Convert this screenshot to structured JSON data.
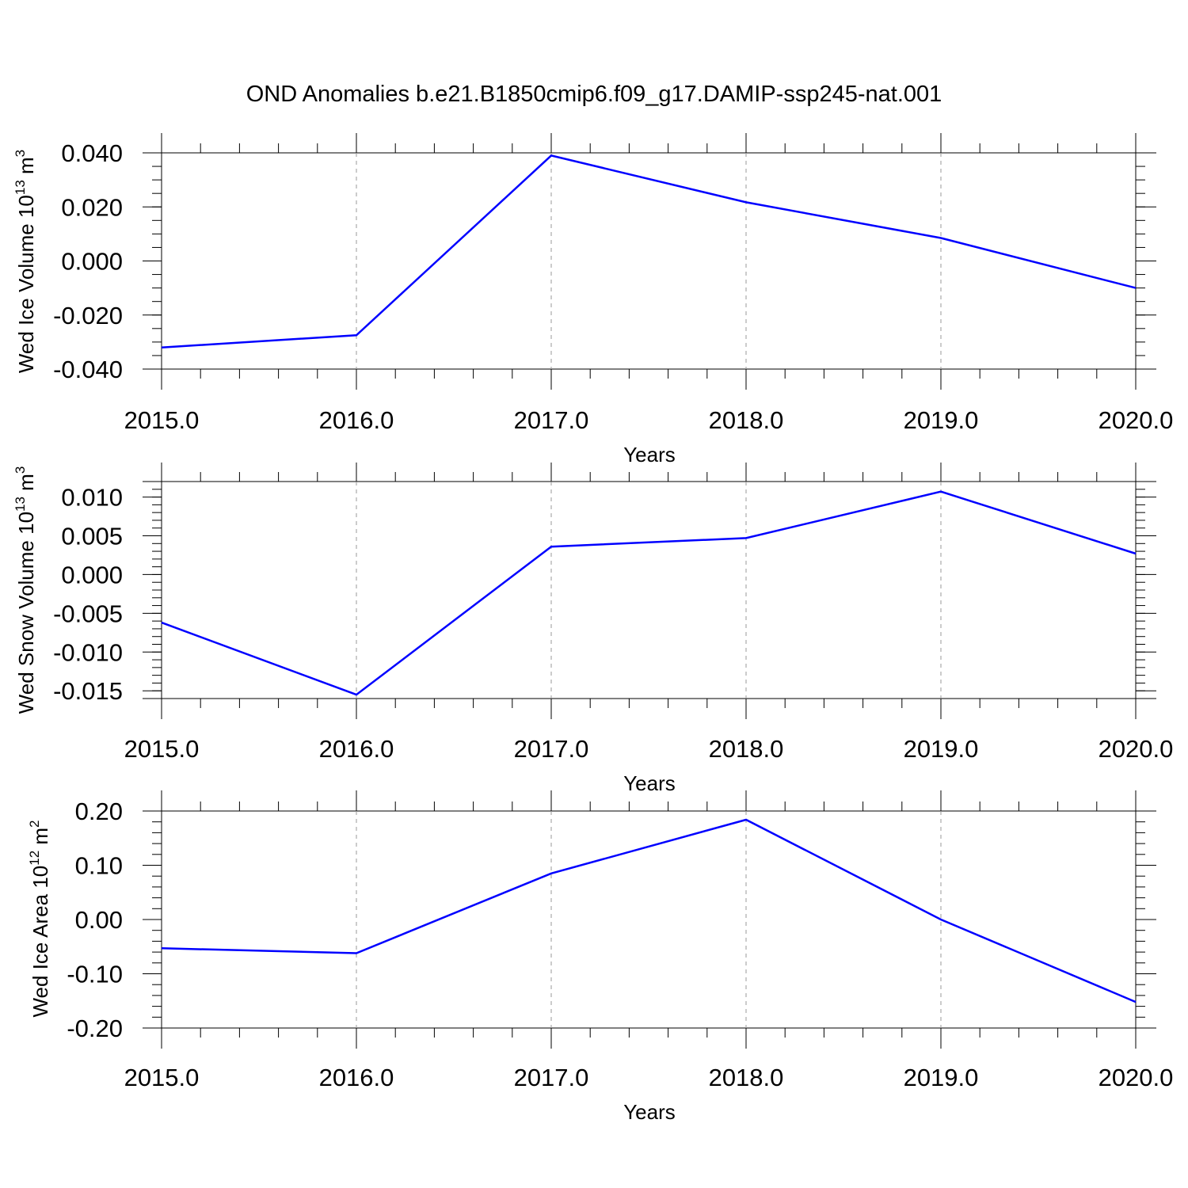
{
  "title": "OND Anomalies b.e21.B1850cmip6.f09_g17.DAMIP-ssp245-nat.001",
  "line_color": "#0000ff",
  "chart_data": [
    {
      "type": "line",
      "ylabel": {
        "main": "Wed Ice Volume 10",
        "exp": "13",
        "unit": " m",
        "unit_exp": "3"
      },
      "xlabel": "Years",
      "x": [
        2015,
        2016,
        2017,
        2018,
        2019,
        2020
      ],
      "values": [
        -0.032,
        -0.0275,
        0.039,
        0.0217,
        0.0085,
        -0.01
      ],
      "xlim": [
        2015,
        2020.1
      ],
      "ylim": [
        -0.04,
        0.04
      ],
      "xticks": [
        2015,
        2016,
        2017,
        2018,
        2019,
        2020
      ],
      "xtick_labels": [
        "2015.0",
        "2016.0",
        "2017.0",
        "2018.0",
        "2019.0",
        "2020.0"
      ],
      "yticks": [
        -0.04,
        -0.02,
        0.0,
        0.02,
        0.04
      ],
      "ytick_labels": [
        "-0.040",
        "-0.020",
        "0.000",
        "0.020",
        "0.040"
      ],
      "y_minor_step": 0.005,
      "grid": "vertical dashed"
    },
    {
      "type": "line",
      "ylabel": {
        "main": "Wed Snow Volume 10",
        "exp": "13",
        "unit": " m",
        "unit_exp": "3"
      },
      "xlabel": "Years",
      "x": [
        2015,
        2016,
        2017,
        2018,
        2019,
        2020
      ],
      "values": [
        -0.0062,
        -0.0155,
        0.0036,
        0.0047,
        0.0107,
        0.0027
      ],
      "xlim": [
        2015,
        2020.1
      ],
      "ylim": [
        -0.016,
        0.012
      ],
      "xticks": [
        2015,
        2016,
        2017,
        2018,
        2019,
        2020
      ],
      "xtick_labels": [
        "2015.0",
        "2016.0",
        "2017.0",
        "2018.0",
        "2019.0",
        "2020.0"
      ],
      "yticks": [
        -0.015,
        -0.01,
        -0.005,
        0.0,
        0.005,
        0.01
      ],
      "ytick_labels": [
        "-0.015",
        "-0.010",
        "-0.005",
        "0.000",
        "0.005",
        "0.010"
      ],
      "y_minor_step": 0.001,
      "grid": "vertical dashed"
    },
    {
      "type": "line",
      "ylabel": {
        "main": "Wed Ice Area 10",
        "exp": "12",
        "unit": " m",
        "unit_exp": "2"
      },
      "xlabel": "Years",
      "x": [
        2015,
        2016,
        2017,
        2018,
        2019,
        2020
      ],
      "values": [
        -0.053,
        -0.062,
        0.085,
        0.184,
        0.0,
        -0.152
      ],
      "xlim": [
        2015,
        2020.1
      ],
      "ylim": [
        -0.2,
        0.2
      ],
      "xticks": [
        2015,
        2016,
        2017,
        2018,
        2019,
        2020
      ],
      "xtick_labels": [
        "2015.0",
        "2016.0",
        "2017.0",
        "2018.0",
        "2019.0",
        "2020.0"
      ],
      "yticks": [
        -0.2,
        -0.1,
        0.0,
        0.1,
        0.2
      ],
      "ytick_labels": [
        "-0.20",
        "-0.10",
        "0.00",
        "0.10",
        "0.20"
      ],
      "y_minor_step": 0.02,
      "grid": "vertical dashed"
    }
  ]
}
